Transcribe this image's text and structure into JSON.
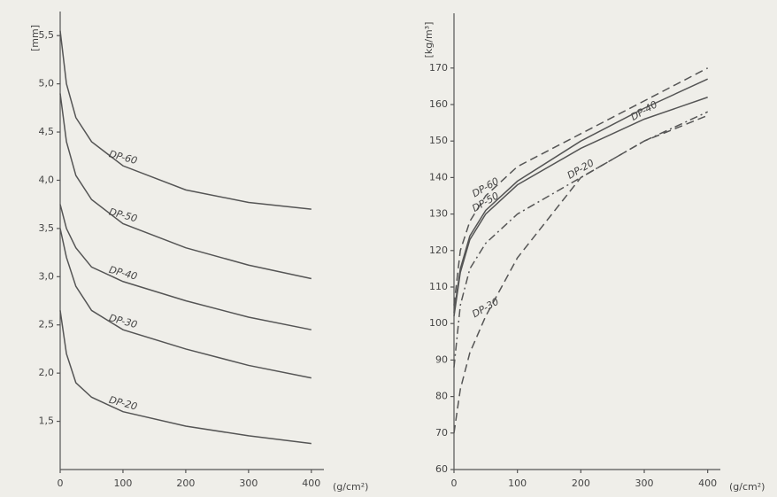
{
  "chart_data": [
    {
      "type": "line",
      "ylabel": "[mm]",
      "xlabel": "(g/cm²)",
      "x": [
        0,
        10,
        25,
        50,
        100,
        200,
        300,
        400
      ],
      "series": [
        {
          "name": "DP-60",
          "color": "#555555",
          "style": "solid",
          "values": [
            5.55,
            5.0,
            4.65,
            4.4,
            4.15,
            3.9,
            3.77,
            3.7
          ]
        },
        {
          "name": "DP-50",
          "color": "#555555",
          "style": "solid",
          "values": [
            4.9,
            4.4,
            4.05,
            3.8,
            3.55,
            3.3,
            3.12,
            2.98
          ]
        },
        {
          "name": "DP-40",
          "color": "#555555",
          "style": "solid",
          "values": [
            3.75,
            3.5,
            3.3,
            3.1,
            2.95,
            2.75,
            2.58,
            2.45
          ]
        },
        {
          "name": "DP-30",
          "color": "#555555",
          "style": "solid",
          "values": [
            3.5,
            3.2,
            2.9,
            2.65,
            2.45,
            2.25,
            2.08,
            1.95
          ]
        },
        {
          "name": "DP-20",
          "color": "#555555",
          "style": "solid",
          "values": [
            2.65,
            2.2,
            1.9,
            1.75,
            1.6,
            1.45,
            1.35,
            1.27
          ]
        }
      ],
      "xlim": [
        0,
        420
      ],
      "xticks": [
        0,
        100,
        200,
        300,
        400
      ],
      "ylim": [
        1.0,
        5.75
      ],
      "yticks": [
        {
          "value": 1.5,
          "label": "1,5"
        },
        {
          "value": 2.0,
          "label": "2,0"
        },
        {
          "value": 2.5,
          "label": "2,5"
        },
        {
          "value": 3.0,
          "label": "3,0"
        },
        {
          "value": 3.5,
          "label": "3,5"
        },
        {
          "value": 4.0,
          "label": "4,0"
        },
        {
          "value": 4.5,
          "label": "4,5"
        },
        {
          "value": 5.0,
          "label": "5,0"
        },
        {
          "value": 5.5,
          "label": "5,5"
        }
      ]
    },
    {
      "type": "line",
      "ylabel": "[kg/m³]",
      "xlabel": "(g/cm²)",
      "x": [
        0,
        10,
        25,
        50,
        100,
        200,
        300,
        400
      ],
      "series": [
        {
          "name": "DP-60",
          "color": "#555555",
          "style": "dashed",
          "values": [
            105,
            120,
            128,
            135,
            143,
            152,
            161,
            170
          ]
        },
        {
          "name": "DP-50",
          "color": "#555555",
          "style": "solid",
          "values": [
            103,
            115,
            124,
            131,
            139,
            150,
            159,
            167
          ]
        },
        {
          "name": "DP-40",
          "color": "#555555",
          "style": "solid",
          "values": [
            102,
            114,
            123,
            130,
            138,
            148,
            156,
            162
          ]
        },
        {
          "name": "DP-20",
          "color": "#555555",
          "style": "dashdot",
          "values": [
            88,
            105,
            115,
            122,
            130,
            140,
            150,
            158
          ]
        },
        {
          "name": "DP-30",
          "color": "#555555",
          "style": "dashed",
          "values": [
            70,
            82,
            92,
            102,
            118,
            140,
            150,
            157
          ]
        }
      ],
      "xlim": [
        0,
        420
      ],
      "xticks": [
        0,
        100,
        200,
        300,
        400
      ],
      "ylim": [
        60,
        185
      ],
      "yticks": [
        60,
        70,
        80,
        90,
        100,
        110,
        120,
        130,
        140,
        150,
        160,
        170
      ]
    }
  ]
}
